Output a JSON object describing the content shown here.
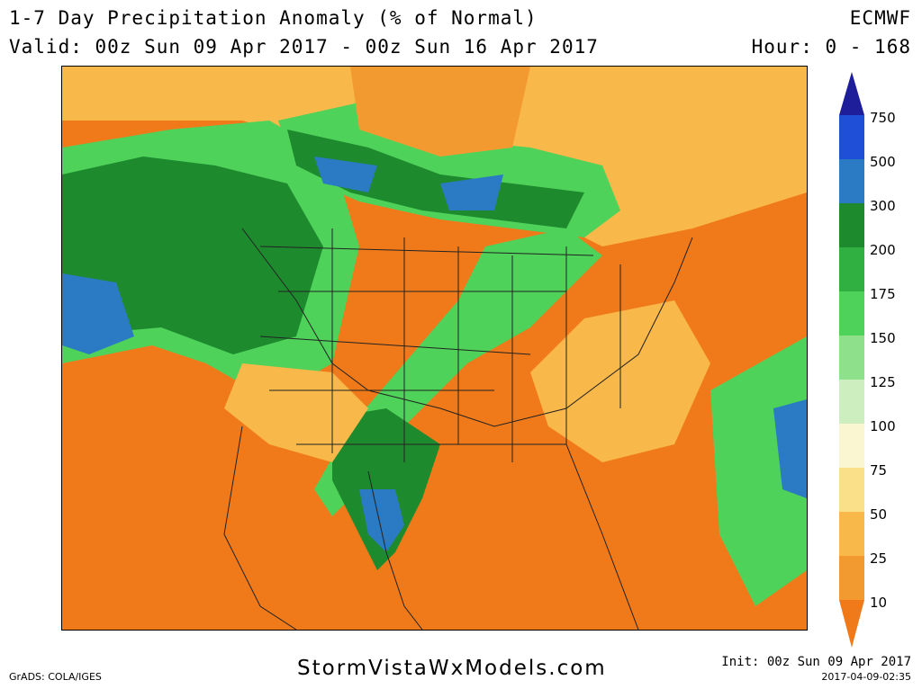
{
  "header": {
    "title": "1-7 Day Precipitation Anomaly (% of Normal)",
    "valid": "Valid: 00z Sun 09 Apr 2017 - 00z Sun 16 Apr 2017",
    "model": "ECMWF",
    "hours": "Hour: 0 - 168"
  },
  "colorbar": {
    "levels": [
      "750",
      "500",
      "300",
      "200",
      "175",
      "150",
      "125",
      "100",
      "75",
      "50",
      "25",
      "10"
    ],
    "colors": [
      "#1e1e9a",
      "#1f4fd6",
      "#2a7ac4",
      "#1e8a2e",
      "#2fb040",
      "#4ed25a",
      "#8fe08a",
      "#cdefc0",
      "#fbf6d2",
      "#fbe08a",
      "#f8b84a",
      "#f29a30",
      "#f07a1a"
    ]
  },
  "footer": {
    "grads": "GrADS: COLA/IGES",
    "site": "StormVistaWxModels.com",
    "init": "Init: 00z Sun 09 Apr 2017",
    "created": "2017-04-09-02:35"
  }
}
